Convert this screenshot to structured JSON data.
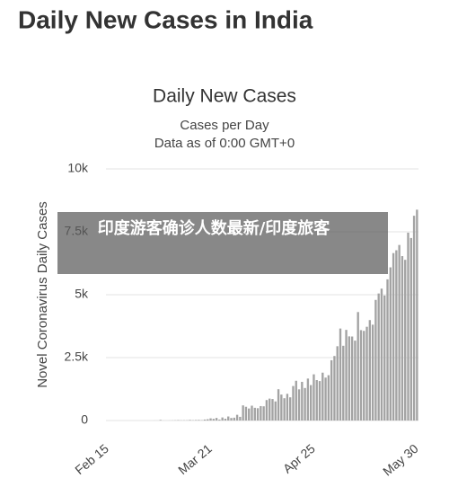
{
  "page_title": "Daily New Cases in India",
  "overlay_text": "印度游客确诊人数最新/印度旅客",
  "chart_data": {
    "type": "bar",
    "title": "Daily New Cases",
    "subtitles": [
      "Cases per Day",
      "Data as of 0:00 GMT+0"
    ],
    "y_label": "Novel Coronavirus Daily Cases",
    "color": "#a3a3a3",
    "categories": [
      "Feb 15",
      null,
      null,
      null,
      null,
      null,
      null,
      null,
      null,
      null,
      null,
      null,
      null,
      null,
      null,
      null,
      null,
      null,
      null,
      null,
      null,
      null,
      null,
      null,
      null,
      null,
      null,
      null,
      null,
      null,
      null,
      null,
      null,
      null,
      null,
      "Mar 21",
      null,
      null,
      null,
      null,
      null,
      null,
      null,
      null,
      null,
      null,
      null,
      null,
      null,
      null,
      null,
      null,
      null,
      null,
      null,
      null,
      null,
      null,
      null,
      null,
      null,
      null,
      null,
      null,
      null,
      null,
      null,
      null,
      null,
      null,
      "Apr 25",
      null,
      null,
      null,
      null,
      null,
      null,
      null,
      null,
      null,
      null,
      null,
      null,
      null,
      null,
      null,
      null,
      null,
      null,
      null,
      null,
      null,
      null,
      null,
      null,
      null,
      null,
      null,
      null,
      null,
      null,
      null,
      null,
      null,
      null,
      "May 30"
    ],
    "values": [
      0,
      0,
      0,
      0,
      0,
      0,
      0,
      0,
      0,
      0,
      0,
      0,
      0,
      0,
      0,
      0,
      2,
      1,
      22,
      2,
      1,
      3,
      5,
      9,
      15,
      8,
      10,
      10,
      23,
      12,
      20,
      23,
      14,
      38,
      50,
      86,
      66,
      103,
      37,
      121,
      70,
      160,
      100,
      112,
      227,
      146,
      601,
      545,
      478,
      589,
      505,
      489,
      573,
      565,
      813,
      871,
      854,
      758,
      1243,
      1031,
      886,
      1061,
      922,
      1371,
      1580,
      1239,
      1537,
      1292,
      1667,
      1408,
      1835,
      1607,
      1568,
      1902,
      1705,
      1801,
      2396,
      2564,
      2952,
      3656,
      2971,
      3602,
      3344,
      3339,
      3175,
      4311,
      3592,
      3562,
      3726,
      3991,
      3808,
      4794,
      5049,
      5242,
      4970,
      5611,
      6088,
      6654,
      6767,
      6977,
      6535,
      6387,
      7466,
      7254,
      8138,
      8380
    ],
    "ylim": [
      0,
      10000
    ],
    "yticks": [
      0,
      {
        "value": 2500,
        "label": "2.5k"
      },
      {
        "value": 5000,
        "label": "5k"
      },
      {
        "value": 7500,
        "label": "7.5k"
      },
      {
        "value": 10000,
        "label": "10k"
      }
    ],
    "grid": true
  }
}
